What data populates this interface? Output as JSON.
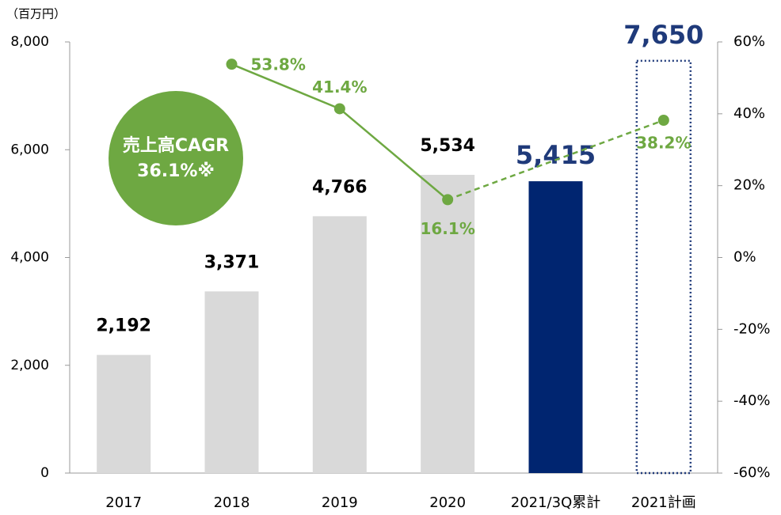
{
  "chart_data": {
    "type": "bar_line",
    "unit_label": "（百万円）",
    "categories": [
      "2017",
      "2018",
      "2019",
      "2020",
      "2021/3Q累計",
      "2021計画"
    ],
    "values": [
      2192,
      3371,
      4766,
      5534,
      5415,
      7650
    ],
    "value_labels": [
      "2,192",
      "3,371",
      "4,766",
      "5,534",
      "5,415",
      "7,650"
    ],
    "bar_fill": [
      "#d9d9d9",
      "#d9d9d9",
      "#d9d9d9",
      "#d9d9d9",
      "#002570",
      "none"
    ],
    "bar_border": [
      null,
      null,
      null,
      null,
      null,
      "#1f3a7a"
    ],
    "label_colors": [
      "#000000",
      "#000000",
      "#000000",
      "#000000",
      "#1f3a7a",
      "#1f3a7a"
    ],
    "ylim": [
      0,
      8000
    ],
    "yticks": [
      0,
      {
        "value": 2000,
        "label": "2,000"
      },
      {
        "value": 4000,
        "label": "4,000"
      },
      {
        "value": 6000,
        "label": "6,000"
      },
      {
        "value": 8000,
        "label": "8,000"
      }
    ],
    "y2lim": [
      -60,
      60
    ],
    "y2ticks": [
      {
        "value": -60,
        "label": "-60%"
      },
      {
        "value": -40,
        "label": "-40%"
      },
      {
        "value": -20,
        "label": "-20%"
      },
      {
        "value": 0,
        "label": "0%"
      },
      {
        "value": 20,
        "label": "20%"
      },
      {
        "value": 40,
        "label": "40%"
      },
      {
        "value": 60,
        "label": "60%"
      }
    ],
    "series": [
      {
        "axis": "y2",
        "color": "#6ea842",
        "values": [
          null,
          53.8,
          41.4,
          16.1,
          null,
          38.2
        ],
        "value_labels": [
          null,
          "53.8%",
          "41.4%",
          "16.1%",
          null,
          "38.2%"
        ],
        "segment_styles": [
          "solid",
          "solid",
          "dashed"
        ]
      }
    ],
    "annotations": [
      "売上高CAGR",
      "36.1%※"
    ],
    "annotation_color": "#6ea842"
  }
}
